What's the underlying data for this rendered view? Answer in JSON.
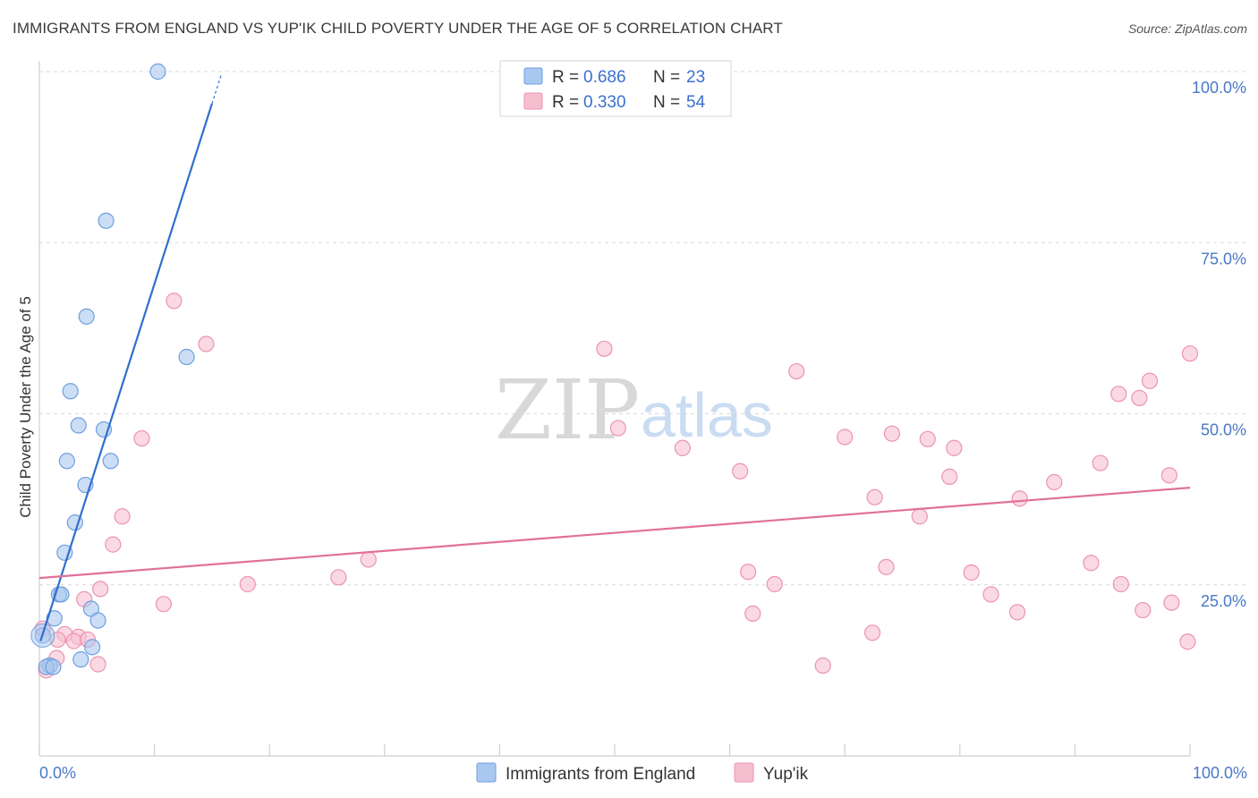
{
  "title": "IMMIGRANTS FROM ENGLAND VS YUP'IK CHILD POVERTY UNDER THE AGE OF 5 CORRELATION CHART",
  "source": "Source: ZipAtlas.com",
  "watermark": {
    "zip": "ZIP",
    "atlas": "atlas"
  },
  "colors": {
    "blue_fill": "#a9c8ef",
    "blue_stroke": "#6f9fe0",
    "blue_line": "#2f6fcf",
    "pink_fill": "#f6bfd0",
    "pink_stroke": "#ec93b0",
    "pink_line": "#e0709a",
    "grid": "#d9d9d9",
    "tick_text": "#4a78c8"
  },
  "legend": {
    "r_label": "R =",
    "n_label": "N =",
    "blue": {
      "r": "0.686",
      "n": "23"
    },
    "pink": {
      "r": "0.330",
      "n": "54"
    }
  },
  "chart_data": {
    "type": "scatter",
    "xlabel": "",
    "ylabel": "Child Poverty Under the Age of 5",
    "xlim": [
      0,
      100
    ],
    "ylim": [
      0,
      100
    ],
    "x_tick_labels": [
      "0.0%",
      "100.0%"
    ],
    "y_tick_labels": [
      "25.0%",
      "50.0%",
      "75.0%",
      "100.0%"
    ],
    "y_ticks": [
      25,
      50,
      75,
      100
    ],
    "series": [
      {
        "name": "Immigrants from England",
        "color": "blue",
        "trend": {
          "x": [
            0.1,
            15.0
          ],
          "y": [
            16.8,
            95.3
          ],
          "dash_to": [
            15.8,
            99.5
          ]
        },
        "points": [
          {
            "x": 10.3,
            "y": 100.0
          },
          {
            "x": 5.8,
            "y": 78.2
          },
          {
            "x": 4.1,
            "y": 64.2
          },
          {
            "x": 12.8,
            "y": 58.3
          },
          {
            "x": 2.7,
            "y": 53.3
          },
          {
            "x": 3.4,
            "y": 48.3
          },
          {
            "x": 5.6,
            "y": 47.7
          },
          {
            "x": 2.4,
            "y": 43.1
          },
          {
            "x": 6.2,
            "y": 43.1
          },
          {
            "x": 4.0,
            "y": 39.6
          },
          {
            "x": 3.1,
            "y": 34.1
          },
          {
            "x": 2.2,
            "y": 29.7
          },
          {
            "x": 1.7,
            "y": 23.6
          },
          {
            "x": 1.9,
            "y": 23.6
          },
          {
            "x": 4.5,
            "y": 21.5
          },
          {
            "x": 1.3,
            "y": 20.1
          },
          {
            "x": 5.1,
            "y": 19.8
          },
          {
            "x": 0.3,
            "y": 17.6
          },
          {
            "x": 4.6,
            "y": 15.9
          },
          {
            "x": 3.6,
            "y": 14.1
          },
          {
            "x": 0.9,
            "y": 13.2
          },
          {
            "x": 0.6,
            "y": 13.0
          },
          {
            "x": 1.2,
            "y": 13.0
          }
        ]
      },
      {
        "name": "Yup'ik",
        "color": "pink",
        "trend": {
          "x": [
            0,
            100
          ],
          "y": [
            26.0,
            39.2
          ]
        },
        "points": [
          {
            "x": 11.7,
            "y": 66.5
          },
          {
            "x": 14.5,
            "y": 60.2
          },
          {
            "x": 8.9,
            "y": 46.4
          },
          {
            "x": 7.2,
            "y": 35.0
          },
          {
            "x": 6.4,
            "y": 30.9
          },
          {
            "x": 18.1,
            "y": 25.1
          },
          {
            "x": 26.0,
            "y": 26.1
          },
          {
            "x": 28.6,
            "y": 28.7
          },
          {
            "x": 10.8,
            "y": 22.2
          },
          {
            "x": 5.3,
            "y": 24.4
          },
          {
            "x": 3.9,
            "y": 22.9
          },
          {
            "x": 2.2,
            "y": 17.8
          },
          {
            "x": 1.6,
            "y": 17.0
          },
          {
            "x": 3.4,
            "y": 17.4
          },
          {
            "x": 3.0,
            "y": 16.8
          },
          {
            "x": 4.2,
            "y": 17.0
          },
          {
            "x": 1.5,
            "y": 14.3
          },
          {
            "x": 5.1,
            "y": 13.4
          },
          {
            "x": 0.3,
            "y": 18.6
          },
          {
            "x": 0.6,
            "y": 12.5
          },
          {
            "x": 49.1,
            "y": 59.5
          },
          {
            "x": 50.3,
            "y": 47.9
          },
          {
            "x": 55.9,
            "y": 45.0
          },
          {
            "x": 60.9,
            "y": 41.6
          },
          {
            "x": 61.6,
            "y": 26.9
          },
          {
            "x": 62.0,
            "y": 20.8
          },
          {
            "x": 63.9,
            "y": 25.1
          },
          {
            "x": 65.8,
            "y": 56.2
          },
          {
            "x": 68.1,
            "y": 13.2
          },
          {
            "x": 70.0,
            "y": 46.6
          },
          {
            "x": 72.6,
            "y": 37.8
          },
          {
            "x": 72.4,
            "y": 18.0
          },
          {
            "x": 73.6,
            "y": 27.6
          },
          {
            "x": 74.1,
            "y": 47.1
          },
          {
            "x": 76.5,
            "y": 35.0
          },
          {
            "x": 77.2,
            "y": 46.3
          },
          {
            "x": 79.1,
            "y": 40.8
          },
          {
            "x": 79.5,
            "y": 45.0
          },
          {
            "x": 81.0,
            "y": 26.8
          },
          {
            "x": 82.7,
            "y": 23.6
          },
          {
            "x": 85.2,
            "y": 37.6
          },
          {
            "x": 85.0,
            "y": 21.0
          },
          {
            "x": 88.2,
            "y": 40.0
          },
          {
            "x": 91.4,
            "y": 28.2
          },
          {
            "x": 92.2,
            "y": 42.8
          },
          {
            "x": 93.8,
            "y": 52.9
          },
          {
            "x": 94.0,
            "y": 25.1
          },
          {
            "x": 95.6,
            "y": 52.3
          },
          {
            "x": 96.5,
            "y": 54.8
          },
          {
            "x": 95.9,
            "y": 21.3
          },
          {
            "x": 98.2,
            "y": 41.0
          },
          {
            "x": 98.4,
            "y": 22.4
          },
          {
            "x": 100.0,
            "y": 58.8
          },
          {
            "x": 99.8,
            "y": 16.7
          }
        ]
      }
    ],
    "legend_position": "top-center",
    "bottom_legend": [
      "Immigrants from England",
      "Yup'ik"
    ]
  }
}
